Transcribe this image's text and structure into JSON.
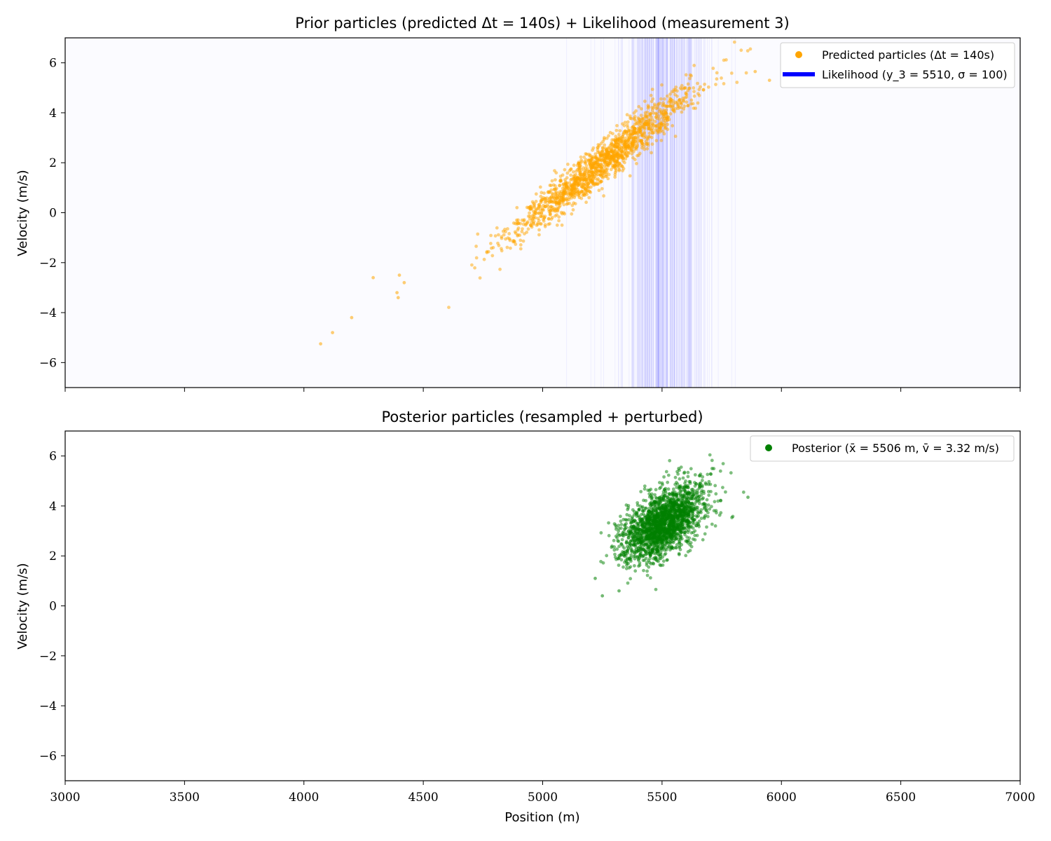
{
  "chart_data": [
    {
      "type": "scatter",
      "title": "Prior particles (predicted Δt = 140s) + Likelihood (measurement 3)",
      "xlabel": "",
      "ylabel": "Velocity (m/s)",
      "xlim": [
        3000,
        7000
      ],
      "ylim": [
        -7,
        7
      ],
      "xticks": [
        3000,
        3500,
        4000,
        4500,
        5000,
        5500,
        6000,
        6500,
        7000
      ],
      "yticks": [
        -6,
        -4,
        -2,
        0,
        2,
        4,
        6
      ],
      "show_xticklabels": false,
      "grid": false,
      "background_color": "#fbfbff",
      "legend_position": "top-right",
      "series": [
        {
          "name": "Predicted particles (Δt = 140s)",
          "color": "#ffa500",
          "marker": "dot",
          "distribution": {
            "count": 1500,
            "mean_x": 5250,
            "mean_v": 2.0,
            "v_std": 1.45,
            "slope_m_per_mps": 125,
            "x_residual_std": 55
          },
          "notable_points": [
            {
              "x": 4070,
              "y": -5.25
            },
            {
              "x": 4120,
              "y": -4.8
            },
            {
              "x": 4200,
              "y": -4.2
            },
            {
              "x": 4290,
              "y": -2.6
            },
            {
              "x": 4390,
              "y": -3.2
            },
            {
              "x": 4395,
              "y": -3.4
            },
            {
              "x": 4400,
              "y": -2.5
            },
            {
              "x": 4420,
              "y": -2.8
            },
            {
              "x": 5950,
              "y": 5.3
            },
            {
              "x": 5890,
              "y": 5.65
            }
          ]
        },
        {
          "name": "Likelihood (y_3 = 5510, σ = 100)",
          "color": "#0000ff",
          "marker": "band",
          "mu": 5510,
          "sigma": 100
        }
      ]
    },
    {
      "type": "scatter",
      "title": "Posterior particles (resampled + perturbed)",
      "xlabel": "Position (m)",
      "ylabel": "Velocity (m/s)",
      "xlim": [
        3000,
        7000
      ],
      "ylim": [
        -7,
        7
      ],
      "xticks": [
        3000,
        3500,
        4000,
        4500,
        5000,
        5500,
        6000,
        6500,
        7000
      ],
      "yticks": [
        -6,
        -4,
        -2,
        0,
        2,
        4,
        6
      ],
      "grid": false,
      "legend_position": "top-right",
      "series": [
        {
          "name": "Posterior (x̄ = 5506 m, v̄ = 3.32 m/s)",
          "color": "#008000",
          "marker": "dot",
          "distribution": {
            "count": 2000,
            "mean_x": 5506,
            "mean_v": 3.32,
            "x_std": 85,
            "v_std": 0.75,
            "correlation": 0.55
          },
          "notable_points": [
            {
              "x": 5250,
              "y": 0.4
            },
            {
              "x": 5320,
              "y": 0.6
            },
            {
              "x": 5220,
              "y": 1.1
            },
            {
              "x": 5860,
              "y": 4.35
            },
            {
              "x": 5710,
              "y": 5.5
            },
            {
              "x": 5570,
              "y": 5.5
            }
          ]
        }
      ]
    }
  ]
}
